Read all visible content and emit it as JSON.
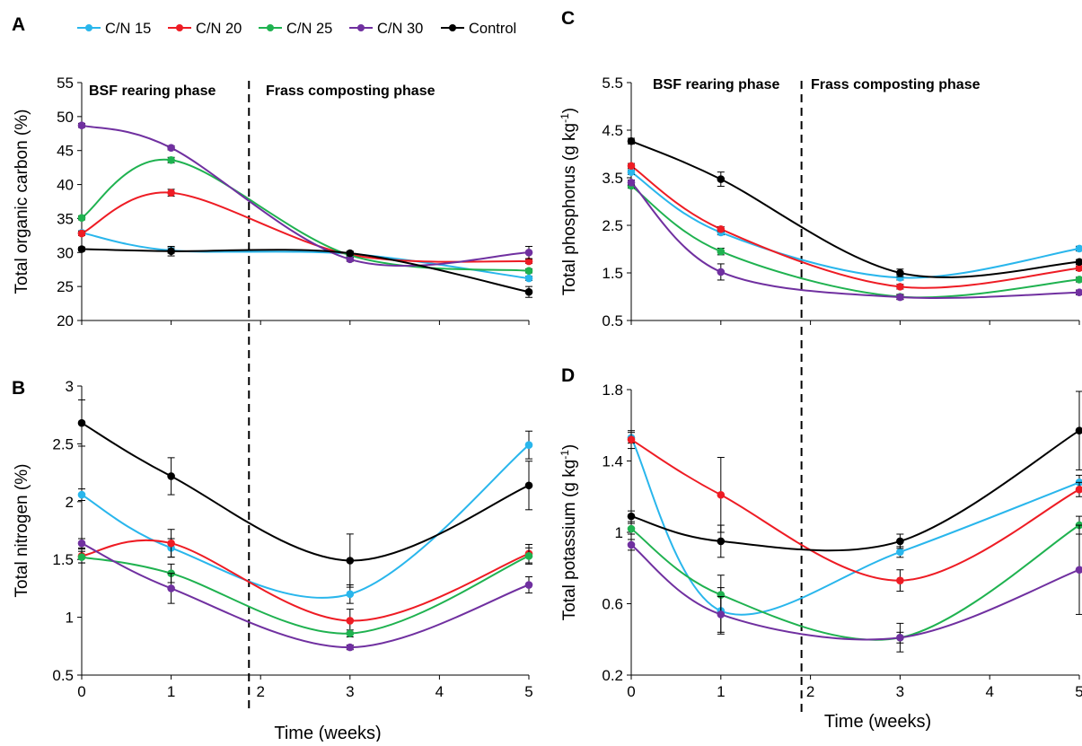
{
  "legend": [
    {
      "name": "C/N 15",
      "color": "#29b6ec"
    },
    {
      "name": "C/N 20",
      "color": "#ee1c24"
    },
    {
      "name": "C/N 25",
      "color": "#1fb250"
    },
    {
      "name": "C/N 30",
      "color": "#7030a0"
    },
    {
      "name": "Control",
      "color": "#000000"
    }
  ],
  "chart_data": [
    {
      "panel": "A",
      "type": "line",
      "ylabel": "Total organic carbon (%)",
      "xlabel": "",
      "ylim": [
        20,
        55
      ],
      "yticks": [
        "20",
        "25",
        "30",
        "35",
        "40",
        "45",
        "50",
        "55"
      ],
      "xlim": [
        0,
        5
      ],
      "xticks": [],
      "phase_labels": [
        "BSF rearing phase",
        "Frass composting phase"
      ],
      "phase_divider_x": 1.87,
      "x": [
        0,
        1,
        3,
        5
      ],
      "series": [
        {
          "name": "C/N 15",
          "values": [
            32.9,
            30.3,
            29.8,
            26.2
          ],
          "errors": [
            0.3,
            0.4,
            0.3,
            0.3
          ]
        },
        {
          "name": "C/N 20",
          "values": [
            32.8,
            38.8,
            29.7,
            28.7
          ],
          "errors": [
            0.3,
            0.5,
            0.3,
            0.3
          ]
        },
        {
          "name": "C/N 25",
          "values": [
            35.1,
            43.6,
            29.6,
            27.3
          ],
          "errors": [
            0.3,
            0.4,
            0.3,
            0.3
          ]
        },
        {
          "name": "C/N 30",
          "values": [
            48.7,
            45.4,
            29.0,
            30.0
          ],
          "errors": [
            0.3,
            0.3,
            0.3,
            0.9
          ]
        },
        {
          "name": "Control",
          "values": [
            30.5,
            30.2,
            29.9,
            24.2
          ],
          "errors": [
            0.3,
            0.7,
            0.3,
            0.8
          ]
        }
      ]
    },
    {
      "panel": "B",
      "type": "line",
      "ylabel": "Total nitrogen (%)",
      "xlabel": "Time (weeks)",
      "ylim": [
        0.5,
        3
      ],
      "yticks": [
        "0.5",
        "1",
        "1.5",
        "2",
        "2.5",
        "3"
      ],
      "xlim": [
        0,
        5
      ],
      "xticks": [
        "0",
        "1",
        "2",
        "3",
        "4",
        "5"
      ],
      "phase_divider_x": 1.87,
      "x": [
        0,
        1,
        3,
        5
      ],
      "series": [
        {
          "name": "C/N 15",
          "values": [
            2.06,
            1.6,
            1.2,
            2.49
          ],
          "errors": [
            0.05,
            0.08,
            0.08,
            0.12
          ]
        },
        {
          "name": "C/N 20",
          "values": [
            1.53,
            1.64,
            0.97,
            1.55
          ],
          "errors": [
            0.06,
            0.12,
            0.1,
            0.08
          ]
        },
        {
          "name": "C/N 25",
          "values": [
            1.52,
            1.38,
            0.86,
            1.53
          ],
          "errors": [
            0.05,
            0.08,
            0.03,
            0.07
          ]
        },
        {
          "name": "C/N 30",
          "values": [
            1.64,
            1.25,
            0.74,
            1.28
          ],
          "errors": [
            0.04,
            0.13,
            0.02,
            0.07
          ]
        },
        {
          "name": "Control",
          "values": [
            2.68,
            2.22,
            1.49,
            2.14
          ],
          "errors": [
            0.2,
            0.16,
            0.23,
            0.21
          ]
        }
      ]
    },
    {
      "panel": "C",
      "type": "line",
      "ylabel": "Total phosphorus (g kg",
      "ylabel_sup": "-1",
      "ylabel_end": ")",
      "xlabel": "",
      "ylim": [
        0.5,
        5.5
      ],
      "yticks": [
        "0.5",
        "1.5",
        "2.5",
        "3.5",
        "4.5",
        "5.5"
      ],
      "xlim": [
        0,
        5
      ],
      "xticks": [],
      "phase_labels": [
        "BSF rearing phase",
        "Frass composting phase"
      ],
      "phase_divider_x": 1.9,
      "x": [
        0,
        1,
        3,
        5
      ],
      "series": [
        {
          "name": "C/N 15",
          "values": [
            3.62,
            2.35,
            1.4,
            2.01
          ],
          "errors": [
            0.05,
            0.05,
            0.05,
            0.05
          ]
        },
        {
          "name": "C/N 20",
          "values": [
            3.75,
            2.42,
            1.21,
            1.6
          ],
          "errors": [
            0.05,
            0.05,
            0.05,
            0.05
          ]
        },
        {
          "name": "C/N 25",
          "values": [
            3.33,
            1.95,
            1.0,
            1.36
          ],
          "errors": [
            0.05,
            0.07,
            0.05,
            0.05
          ]
        },
        {
          "name": "C/N 30",
          "values": [
            3.4,
            1.52,
            0.99,
            1.09
          ],
          "errors": [
            0.05,
            0.17,
            0.05,
            0.05
          ]
        },
        {
          "name": "Control",
          "values": [
            4.27,
            3.47,
            1.5,
            1.73
          ],
          "errors": [
            0.06,
            0.15,
            0.08,
            0.05
          ]
        }
      ]
    },
    {
      "panel": "D",
      "type": "line",
      "ylabel": "Total potassium (g kg",
      "ylabel_sup": "-1",
      "ylabel_end": ")",
      "xlabel": "Time (weeks)",
      "ylim": [
        0.2,
        1.8
      ],
      "yticks": [
        "0.2",
        "0.6",
        "1",
        "1.4",
        "1.8"
      ],
      "xlim": [
        0,
        5
      ],
      "xticks": [
        "0",
        "1",
        "2",
        "3",
        "4",
        "5"
      ],
      "phase_divider_x": 1.9,
      "x": [
        0,
        1,
        3,
        5
      ],
      "series": [
        {
          "name": "C/N 15",
          "values": [
            1.53,
            0.56,
            0.89,
            1.28
          ],
          "errors": [
            0.03,
            0.13,
            0.03,
            0.04
          ]
        },
        {
          "name": "C/N 20",
          "values": [
            1.52,
            1.21,
            0.73,
            1.24
          ],
          "errors": [
            0.05,
            0.21,
            0.06,
            0.04
          ]
        },
        {
          "name": "C/N 25",
          "values": [
            1.02,
            0.65,
            0.41,
            1.04
          ],
          "errors": [
            0.03,
            0.11,
            0.08,
            0.05
          ]
        },
        {
          "name": "C/N 30",
          "values": [
            0.93,
            0.54,
            0.41,
            0.79
          ],
          "errors": [
            0.03,
            0.1,
            0.03,
            0.25
          ]
        },
        {
          "name": "Control",
          "values": [
            1.09,
            0.95,
            0.95,
            1.57
          ],
          "errors": [
            0.03,
            0.09,
            0.04,
            0.22
          ]
        }
      ]
    }
  ]
}
